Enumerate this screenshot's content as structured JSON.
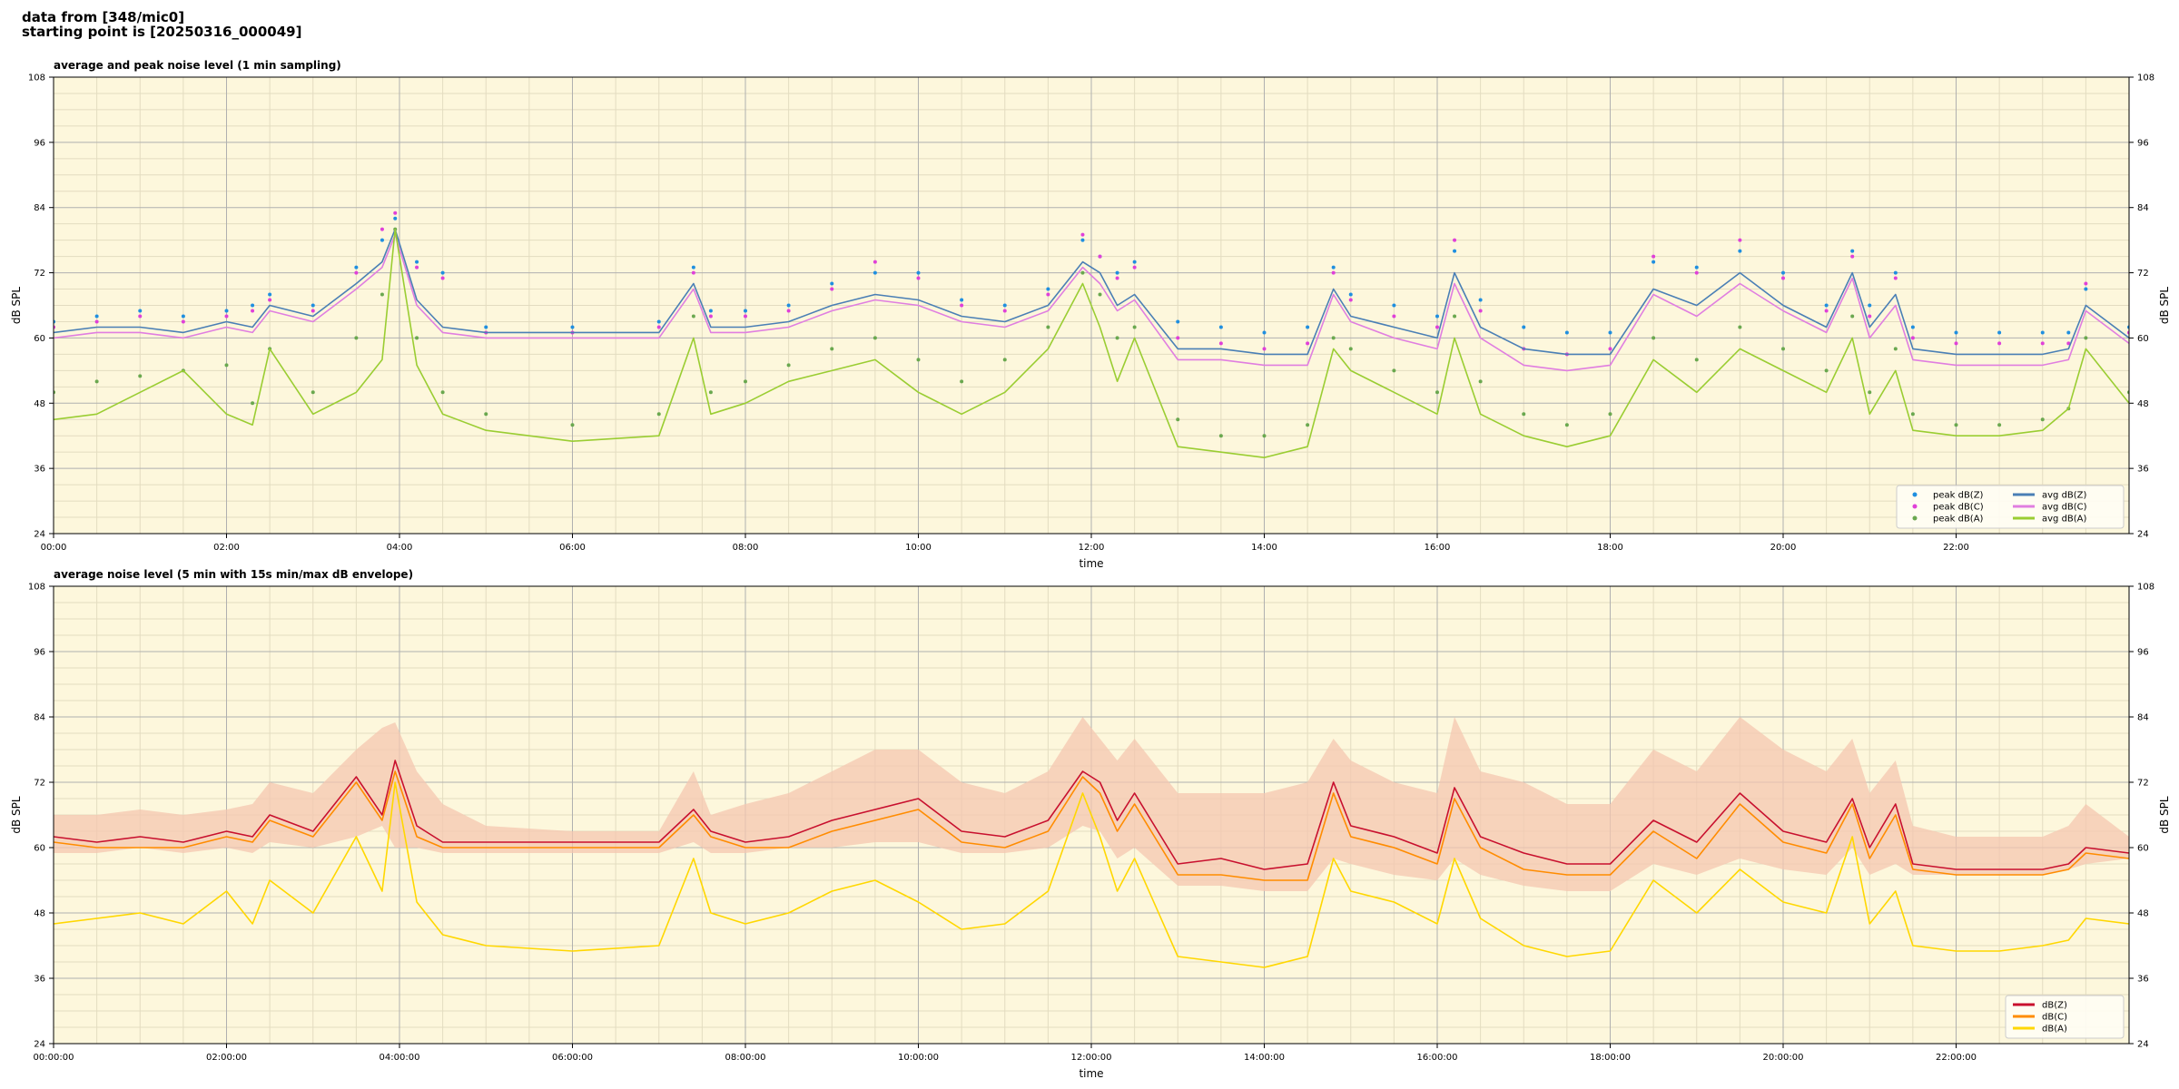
{
  "header": {
    "line1": "data from [348/mic0]",
    "line2": "starting point is [20250316_000049]"
  },
  "colors": {
    "background": "#fdf7dc",
    "grid_major": "#b0b0b0",
    "grid_minor": "#e3dcc0"
  },
  "chart_data": [
    {
      "type": "line",
      "title": "average and peak noise level (1 min sampling)",
      "xlabel": "time",
      "ylabel": "dB SPL",
      "ylabel_right": "dB SPL",
      "xlim": [
        0,
        24
      ],
      "ylim": [
        24,
        108
      ],
      "x_unit": "hours since 00:00",
      "xticks": [
        0,
        2,
        4,
        6,
        8,
        10,
        12,
        14,
        16,
        18,
        20,
        22
      ],
      "xtick_labels": [
        "00:00",
        "02:00",
        "04:00",
        "06:00",
        "08:00",
        "10:00",
        "12:00",
        "14:00",
        "16:00",
        "18:00",
        "20:00",
        "22:00"
      ],
      "yticks": [
        24,
        36,
        48,
        60,
        72,
        84,
        96,
        108
      ],
      "ytick_labels": [
        "24",
        "36",
        "48",
        "60",
        "72",
        "84",
        "96",
        "108"
      ],
      "grid": true,
      "legend_position": "bottom-right",
      "legend_columns": 2,
      "x": [
        0,
        0.5,
        1,
        1.5,
        2,
        2.3,
        2.5,
        3,
        3.5,
        3.8,
        3.95,
        4.2,
        4.5,
        5,
        6,
        7,
        7.4,
        7.6,
        8,
        8.5,
        9,
        9.5,
        10,
        10.5,
        11,
        11.5,
        11.9,
        12.1,
        12.3,
        12.5,
        13,
        13.5,
        14,
        14.5,
        14.8,
        15,
        15.5,
        16,
        16.2,
        16.5,
        17,
        17.5,
        18,
        18.5,
        19,
        19.5,
        20,
        20.5,
        20.8,
        21,
        21.3,
        21.5,
        22,
        22.5,
        23,
        23.3,
        23.5,
        24
      ],
      "series": [
        {
          "name": "peak dB(Z)",
          "kind": "scatter",
          "color": "#1f8fe0",
          "values": [
            63,
            64,
            65,
            64,
            65,
            66,
            68,
            66,
            73,
            78,
            82,
            74,
            72,
            62,
            62,
            63,
            73,
            65,
            65,
            66,
            70,
            72,
            72,
            67,
            66,
            69,
            78,
            75,
            72,
            74,
            63,
            62,
            61,
            62,
            73,
            68,
            66,
            64,
            76,
            67,
            62,
            61,
            61,
            74,
            73,
            76,
            72,
            66,
            76,
            66,
            72,
            62,
            61,
            61,
            61,
            61,
            69,
            62
          ]
        },
        {
          "name": "peak dB(C)",
          "kind": "scatter",
          "color": "#e040d8",
          "values": [
            62,
            63,
            64,
            63,
            64,
            65,
            67,
            65,
            72,
            80,
            83,
            73,
            71,
            61,
            61,
            62,
            72,
            64,
            64,
            65,
            69,
            74,
            71,
            66,
            65,
            68,
            79,
            75,
            71,
            73,
            60,
            59,
            58,
            59,
            72,
            67,
            64,
            62,
            78,
            65,
            58,
            57,
            58,
            75,
            72,
            78,
            71,
            65,
            75,
            64,
            71,
            60,
            59,
            59,
            59,
            59,
            70,
            61
          ]
        },
        {
          "name": "peak dB(A)",
          "kind": "scatter",
          "color": "#6aa84f",
          "values": [
            50,
            52,
            53,
            54,
            55,
            48,
            58,
            50,
            60,
            68,
            80,
            60,
            50,
            46,
            44,
            46,
            64,
            50,
            52,
            55,
            58,
            60,
            56,
            52,
            56,
            62,
            72,
            68,
            60,
            62,
            45,
            42,
            42,
            44,
            60,
            58,
            54,
            50,
            64,
            52,
            46,
            44,
            46,
            60,
            56,
            62,
            58,
            54,
            64,
            50,
            58,
            46,
            44,
            44,
            45,
            47,
            60,
            50
          ]
        },
        {
          "name": "avg dB(Z)",
          "kind": "line",
          "color": "#4a7fb5",
          "values": [
            61,
            62,
            62,
            61,
            63,
            62,
            66,
            64,
            70,
            74,
            80,
            67,
            62,
            61,
            61,
            61,
            70,
            62,
            62,
            63,
            66,
            68,
            67,
            64,
            63,
            66,
            74,
            72,
            66,
            68,
            58,
            58,
            57,
            57,
            69,
            64,
            62,
            60,
            72,
            62,
            58,
            57,
            57,
            69,
            66,
            72,
            66,
            62,
            72,
            62,
            68,
            58,
            57,
            57,
            57,
            58,
            66,
            60
          ]
        },
        {
          "name": "avg dB(C)",
          "kind": "line",
          "color": "#e07ee0",
          "values": [
            60,
            61,
            61,
            60,
            62,
            61,
            65,
            63,
            69,
            73,
            79,
            66,
            61,
            60,
            60,
            60,
            69,
            61,
            61,
            62,
            65,
            67,
            66,
            63,
            62,
            65,
            73,
            70,
            65,
            67,
            56,
            56,
            55,
            55,
            68,
            63,
            60,
            58,
            70,
            60,
            55,
            54,
            55,
            68,
            64,
            70,
            65,
            61,
            71,
            60,
            66,
            56,
            55,
            55,
            55,
            56,
            65,
            59
          ]
        },
        {
          "name": "avg dB(A)",
          "kind": "line",
          "color": "#9acd32",
          "values": [
            45,
            46,
            50,
            54,
            46,
            44,
            58,
            46,
            50,
            56,
            80,
            55,
            46,
            43,
            41,
            42,
            60,
            46,
            48,
            52,
            54,
            56,
            50,
            46,
            50,
            58,
            70,
            62,
            52,
            60,
            40,
            39,
            38,
            40,
            58,
            54,
            50,
            46,
            60,
            46,
            42,
            40,
            42,
            56,
            50,
            58,
            54,
            50,
            60,
            46,
            54,
            43,
            42,
            42,
            43,
            47,
            58,
            48
          ]
        }
      ]
    },
    {
      "type": "line",
      "title": "average noise level (5 min with 15s min/max dB envelope)",
      "xlabel": "time",
      "ylabel": "dB SPL",
      "ylabel_right": "dB SPL",
      "xlim": [
        0,
        24
      ],
      "ylim": [
        24,
        108
      ],
      "x_unit": "hours since 00:00:00",
      "xticks": [
        0,
        2,
        4,
        6,
        8,
        10,
        12,
        14,
        16,
        18,
        20,
        22
      ],
      "xtick_labels": [
        "00:00:00",
        "02:00:00",
        "04:00:00",
        "06:00:00",
        "08:00:00",
        "10:00:00",
        "12:00:00",
        "14:00:00",
        "16:00:00",
        "18:00:00",
        "20:00:00",
        "22:00:00"
      ],
      "yticks": [
        24,
        36,
        48,
        60,
        72,
        84,
        96,
        108
      ],
      "ytick_labels": [
        "24",
        "36",
        "48",
        "60",
        "72",
        "84",
        "96",
        "108"
      ],
      "grid": true,
      "legend_position": "bottom-right",
      "envelope": {
        "color": "#f4c7b0",
        "upper": [
          66,
          66,
          67,
          66,
          67,
          68,
          72,
          70,
          78,
          82,
          83,
          74,
          68,
          64,
          63,
          63,
          74,
          66,
          68,
          70,
          74,
          78,
          78,
          72,
          70,
          74,
          84,
          80,
          76,
          80,
          70,
          70,
          70,
          72,
          80,
          76,
          72,
          70,
          84,
          74,
          72,
          68,
          68,
          78,
          74,
          84,
          78,
          74,
          80,
          70,
          76,
          64,
          62,
          62,
          62,
          64,
          68,
          62
        ],
        "lower": [
          59,
          59,
          60,
          59,
          60,
          59,
          61,
          60,
          62,
          64,
          60,
          60,
          59,
          59,
          59,
          59,
          61,
          59,
          59,
          60,
          60,
          61,
          61,
          59,
          59,
          60,
          64,
          63,
          58,
          60,
          53,
          53,
          52,
          52,
          58,
          57,
          55,
          54,
          58,
          55,
          53,
          52,
          52,
          57,
          55,
          58,
          56,
          55,
          60,
          55,
          57,
          55,
          55,
          55,
          55,
          56,
          57,
          58
        ]
      },
      "x": [
        0,
        0.5,
        1,
        1.5,
        2,
        2.3,
        2.5,
        3,
        3.5,
        3.8,
        3.95,
        4.2,
        4.5,
        5,
        6,
        7,
        7.4,
        7.6,
        8,
        8.5,
        9,
        9.5,
        10,
        10.5,
        11,
        11.5,
        11.9,
        12.1,
        12.3,
        12.5,
        13,
        13.5,
        14,
        14.5,
        14.8,
        15,
        15.5,
        16,
        16.2,
        16.5,
        17,
        17.5,
        18,
        18.5,
        19,
        19.5,
        20,
        20.5,
        20.8,
        21,
        21.3,
        21.5,
        22,
        22.5,
        23,
        23.3,
        23.5,
        24
      ],
      "series": [
        {
          "name": "dB(Z)",
          "color": "#c8102e",
          "values": [
            62,
            61,
            62,
            61,
            63,
            62,
            66,
            63,
            73,
            66,
            76,
            64,
            61,
            61,
            61,
            61,
            67,
            63,
            61,
            62,
            65,
            67,
            69,
            63,
            62,
            65,
            74,
            72,
            65,
            70,
            57,
            58,
            56,
            57,
            72,
            64,
            62,
            59,
            71,
            62,
            59,
            57,
            57,
            65,
            61,
            70,
            63,
            61,
            69,
            60,
            68,
            57,
            56,
            56,
            56,
            57,
            60,
            59
          ]
        },
        {
          "name": "dB(C)",
          "color": "#ff8c00",
          "values": [
            61,
            60,
            60,
            60,
            62,
            61,
            65,
            62,
            72,
            65,
            74,
            62,
            60,
            60,
            60,
            60,
            66,
            62,
            60,
            60,
            63,
            65,
            67,
            61,
            60,
            63,
            73,
            70,
            63,
            68,
            55,
            55,
            54,
            54,
            70,
            62,
            60,
            57,
            69,
            60,
            56,
            55,
            55,
            63,
            58,
            68,
            61,
            59,
            68,
            58,
            66,
            56,
            55,
            55,
            55,
            56,
            59,
            58
          ]
        },
        {
          "name": "dB(A)",
          "color": "#ffd700",
          "values": [
            46,
            47,
            48,
            46,
            52,
            46,
            54,
            48,
            62,
            52,
            72,
            50,
            44,
            42,
            41,
            42,
            58,
            48,
            46,
            48,
            52,
            54,
            50,
            45,
            46,
            52,
            70,
            62,
            52,
            58,
            40,
            39,
            38,
            40,
            58,
            52,
            50,
            46,
            58,
            47,
            42,
            40,
            41,
            54,
            48,
            56,
            50,
            48,
            62,
            46,
            52,
            42,
            41,
            41,
            42,
            43,
            47,
            46
          ]
        }
      ]
    }
  ]
}
